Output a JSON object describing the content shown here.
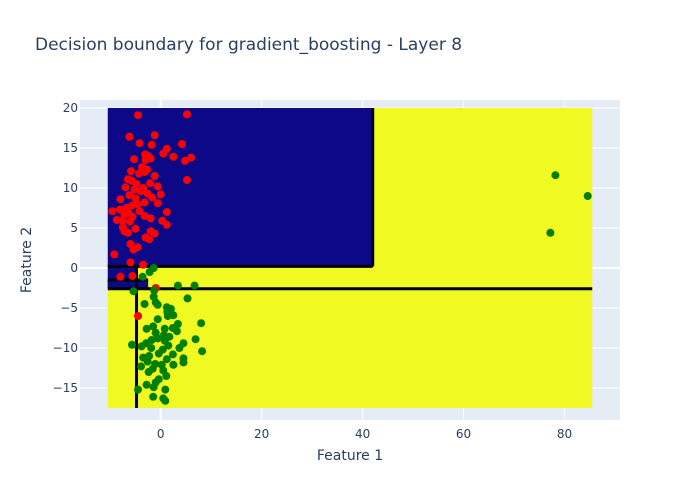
{
  "chart_data": {
    "type": "scatter",
    "title": "Decision boundary for gradient_boosting - Layer 8",
    "xlabel": "Feature 1",
    "ylabel": "Feature 2",
    "xlim": [
      -16,
      91
    ],
    "ylim": [
      -19,
      21
    ],
    "xticks": [
      0,
      20,
      40,
      60,
      80
    ],
    "yticks": [
      -15,
      -10,
      -5,
      0,
      5,
      10,
      15,
      20
    ],
    "grid": true,
    "colors": {
      "plot_bg": "#e5ecf6",
      "grid": "#ffffff",
      "region_class0": "#0d0887",
      "region_class1": "#f0f921",
      "boundary": "#000000",
      "point_class0": "#ff0000",
      "point_class1": "#008000"
    },
    "regions": [
      {
        "class": 1,
        "x": [
          -10.5,
          85.5
        ],
        "y": [
          -17.5,
          20
        ]
      },
      {
        "class": 0,
        "x": [
          -10.5,
          42
        ],
        "y": [
          0.2,
          20
        ]
      },
      {
        "class": 0,
        "x": [
          -10.5,
          -4.8
        ],
        "y": [
          -2.5,
          0.2
        ]
      },
      {
        "class": 0,
        "x": [
          -10.5,
          -2.5
        ],
        "y": [
          -2.5,
          -1.5
        ]
      }
    ],
    "boundaries": [
      {
        "x": [
          42,
          42
        ],
        "y": [
          0.2,
          20
        ]
      },
      {
        "x": [
          -10.5,
          42
        ],
        "y": [
          0.2,
          0.2
        ]
      },
      {
        "x": [
          -10.5,
          85.5
        ],
        "y": [
          -2.6,
          -2.6
        ]
      },
      {
        "x": [
          -4.8,
          -4.8
        ],
        "y": [
          -17.5,
          0.2
        ]
      },
      {
        "x": [
          -10.5,
          -2.5
        ],
        "y": [
          -1.5,
          -1.5
        ]
      }
    ],
    "series": [
      {
        "class": 0,
        "points": [
          [
            5.2,
            19.2
          ],
          [
            -4.5,
            19.1
          ],
          [
            -6.2,
            16.4
          ],
          [
            -1.2,
            16.6
          ],
          [
            4.2,
            15.5
          ],
          [
            -4.2,
            15.6
          ],
          [
            -1.8,
            15.4
          ],
          [
            1.2,
            14.9
          ],
          [
            -3.1,
            14.2
          ],
          [
            -2.5,
            14.0
          ],
          [
            0.5,
            14.3
          ],
          [
            2.5,
            13.9
          ],
          [
            6.0,
            13.8
          ],
          [
            4.8,
            13.4
          ],
          [
            -5.3,
            13.6
          ],
          [
            -3.0,
            13.5
          ],
          [
            -2.0,
            13.7
          ],
          [
            -3.7,
            12.6
          ],
          [
            -2.7,
            12.3
          ],
          [
            -5.9,
            12.1
          ],
          [
            -3.2,
            12.0
          ],
          [
            -4.3,
            11.8
          ],
          [
            -1.2,
            11.5
          ],
          [
            -6.5,
            11.1
          ],
          [
            5.2,
            11.0
          ],
          [
            -5.7,
            10.9
          ],
          [
            -4.8,
            10.5
          ],
          [
            -2.1,
            10.6
          ],
          [
            -7.0,
            10.1
          ],
          [
            -0.6,
            10.2
          ],
          [
            -3.5,
            10.0
          ],
          [
            -5.2,
            9.8
          ],
          [
            -4.0,
            9.6
          ],
          [
            -2.6,
            9.3
          ],
          [
            -6.2,
            9.1
          ],
          [
            0.0,
            9.2
          ],
          [
            -1.7,
            8.8
          ],
          [
            -8.0,
            8.6
          ],
          [
            -5.0,
            8.7
          ],
          [
            -3.2,
            8.2
          ],
          [
            -4.6,
            8.0
          ],
          [
            -0.6,
            8.1
          ],
          [
            -5.7,
            7.8
          ],
          [
            -6.8,
            7.5
          ],
          [
            -8.1,
            7.3
          ],
          [
            -9.6,
            7.1
          ],
          [
            -4.2,
            7.1
          ],
          [
            -6.4,
            6.9
          ],
          [
            1.2,
            7.0
          ],
          [
            -7.2,
            6.6
          ],
          [
            -5.6,
            6.4
          ],
          [
            -3.2,
            6.5
          ],
          [
            -2.0,
            6.2
          ],
          [
            -8.7,
            6.0
          ],
          [
            -7.6,
            5.9
          ],
          [
            0.3,
            5.9
          ],
          [
            -6.1,
            5.8
          ],
          [
            1.2,
            5.4
          ],
          [
            -7.5,
            5.1
          ],
          [
            -5.0,
            4.9
          ],
          [
            -7.2,
            4.6
          ],
          [
            -2.0,
            4.6
          ],
          [
            -6.5,
            4.4
          ],
          [
            -1.2,
            4.3
          ],
          [
            -3.0,
            3.8
          ],
          [
            -2.3,
            3.6
          ],
          [
            -6.0,
            3.0
          ],
          [
            -4.6,
            2.6
          ],
          [
            -5.4,
            2.3
          ],
          [
            -9.2,
            1.7
          ],
          [
            -6.0,
            0.7
          ],
          [
            -3.5,
            0.4
          ],
          [
            -8.0,
            -1.1
          ],
          [
            -5.6,
            -1.0
          ],
          [
            -1.0,
            -2.5
          ],
          [
            -4.5,
            -6.0
          ]
        ]
      },
      {
        "class": 1,
        "points": [
          [
            78.2,
            11.6
          ],
          [
            84.6,
            9.0
          ],
          [
            77.2,
            4.4
          ],
          [
            -1.4,
            0.0
          ],
          [
            -2.2,
            -0.5
          ],
          [
            -3.6,
            -1.1
          ],
          [
            6.7,
            -2.2
          ],
          [
            3.4,
            -2.2
          ],
          [
            -1.3,
            -2.8
          ],
          [
            -5.4,
            -2.9
          ],
          [
            -1.4,
            -3.6
          ],
          [
            5.3,
            -3.8
          ],
          [
            -1.0,
            -4.3
          ],
          [
            -3.2,
            -4.5
          ],
          [
            -0.6,
            -4.6
          ],
          [
            1.2,
            -4.9
          ],
          [
            2.0,
            -5.1
          ],
          [
            1.3,
            -5.5
          ],
          [
            2.5,
            -5.9
          ],
          [
            1.4,
            -6.0
          ],
          [
            -0.6,
            -6.4
          ],
          [
            8.0,
            -6.9
          ],
          [
            3.4,
            -7.0
          ],
          [
            -1.5,
            -7.3
          ],
          [
            -2.8,
            -7.6
          ],
          [
            0.8,
            -7.6
          ],
          [
            2.4,
            -7.5
          ],
          [
            3.2,
            -7.9
          ],
          [
            -1.0,
            -8.1
          ],
          [
            0.6,
            -8.4
          ],
          [
            1.7,
            -8.6
          ],
          [
            -1.8,
            -9.0
          ],
          [
            0.8,
            -9.1
          ],
          [
            -0.6,
            -8.8
          ],
          [
            6.9,
            -8.9
          ],
          [
            -2.9,
            -9.4
          ],
          [
            4.5,
            -9.4
          ],
          [
            -5.7,
            -9.6
          ],
          [
            -3.8,
            -9.8
          ],
          [
            1.5,
            -9.7
          ],
          [
            -1.9,
            -10.0
          ],
          [
            0.4,
            -10.2
          ],
          [
            8.2,
            -10.4
          ],
          [
            3.7,
            -10.0
          ],
          [
            -0.4,
            -10.7
          ],
          [
            2.4,
            -10.8
          ],
          [
            -2.3,
            -11.0
          ],
          [
            -3.5,
            -11.2
          ],
          [
            1.2,
            -11.4
          ],
          [
            4.5,
            -11.3
          ],
          [
            -2.6,
            -11.7
          ],
          [
            -1.1,
            -12.0
          ],
          [
            0.2,
            -12.1
          ],
          [
            2.5,
            -12.1
          ],
          [
            4.5,
            -11.8
          ],
          [
            -3.9,
            -12.3
          ],
          [
            -1.6,
            -12.6
          ],
          [
            0.5,
            -12.8
          ],
          [
            -2.4,
            -13.0
          ],
          [
            1.1,
            -13.5
          ],
          [
            -0.4,
            -13.9
          ],
          [
            -1.0,
            -14.3
          ],
          [
            -2.8,
            -14.6
          ],
          [
            -1.4,
            -14.9
          ],
          [
            0.9,
            -15.2
          ],
          [
            -4.5,
            -15.2
          ],
          [
            -1.5,
            -16.1
          ],
          [
            0.5,
            -16.3
          ],
          [
            0.9,
            -16.6
          ]
        ]
      }
    ]
  }
}
